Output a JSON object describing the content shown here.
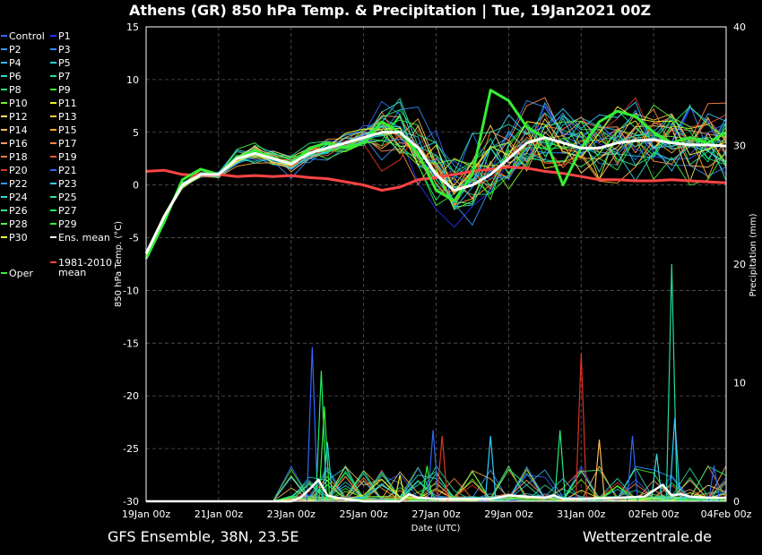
{
  "title": "Athens  (GR)  850 hPa Temp. & Precipitation | Tue, 19Jan2021 00Z",
  "footer_left": "GFS Ensemble, 38N, 23.5E",
  "footer_right": "Wetterzentrale.de",
  "chart_data": {
    "type": "line",
    "xlabel": "Date (UTC)",
    "ylabel_left": "850 hPa Temp. (°C)",
    "ylabel_right": "Precipitation (mm)",
    "xlim": [
      0,
      384
    ],
    "ylim_left": [
      -30,
      15
    ],
    "ylim_right": [
      0,
      40
    ],
    "grid": true,
    "legend_placement": "left",
    "x_ticks": [
      {
        "x": 0,
        "label": "19Jan 00z"
      },
      {
        "x": 48,
        "label": "21Jan 00z"
      },
      {
        "x": 96,
        "label": "23Jan 00z"
      },
      {
        "x": 144,
        "label": "25Jan 00z"
      },
      {
        "x": 192,
        "label": "27Jan 00z"
      },
      {
        "x": 240,
        "label": "29Jan 00z"
      },
      {
        "x": 288,
        "label": "31Jan 00z"
      },
      {
        "x": 336,
        "label": "02Feb 00z"
      },
      {
        "x": 384,
        "label": "04Feb 00z"
      }
    ],
    "y_ticks_left": [
      "15",
      "10",
      "5",
      "0",
      "-5",
      "-10",
      "-15",
      "-20",
      "-25",
      "-30"
    ],
    "y_ticks_right": [
      "40",
      "30",
      "20",
      "10",
      "0"
    ],
    "legend": [
      {
        "name": "Control",
        "color": "#3366ff"
      },
      {
        "name": "P1",
        "color": "#2233ff"
      },
      {
        "name": "P2",
        "color": "#3399ff"
      },
      {
        "name": "P3",
        "color": "#3388ee"
      },
      {
        "name": "P4",
        "color": "#33bbee"
      },
      {
        "name": "P5",
        "color": "#22ccdd"
      },
      {
        "name": "P6",
        "color": "#22ddcc"
      },
      {
        "name": "P7",
        "color": "#22dd99"
      },
      {
        "name": "P8",
        "color": "#22ee77"
      },
      {
        "name": "P9",
        "color": "#44ee33"
      },
      {
        "name": "P10",
        "color": "#77ee22"
      },
      {
        "name": "P11",
        "color": "#eeee22"
      },
      {
        "name": "P12",
        "color": "#ffdd66"
      },
      {
        "name": "P13",
        "color": "#ffcc44"
      },
      {
        "name": "P14",
        "color": "#ffbb55"
      },
      {
        "name": "P15",
        "color": "#ffaa22"
      },
      {
        "name": "P16",
        "color": "#ff9966"
      },
      {
        "name": "P17",
        "color": "#ff8844"
      },
      {
        "name": "P18",
        "color": "#ff7744"
      },
      {
        "name": "P19",
        "color": "#ee5533"
      },
      {
        "name": "P20",
        "color": "#dd3322"
      },
      {
        "name": "P21",
        "color": "#3366ee"
      },
      {
        "name": "P22",
        "color": "#3399ff"
      },
      {
        "name": "P23",
        "color": "#33ccff"
      },
      {
        "name": "P24",
        "color": "#33dddd"
      },
      {
        "name": "P25",
        "color": "#33ddaa"
      },
      {
        "name": "P26",
        "color": "#33ee88"
      },
      {
        "name": "P27",
        "color": "#22ee66"
      },
      {
        "name": "P28",
        "color": "#55ee44"
      },
      {
        "name": "P29",
        "color": "#33ee33"
      },
      {
        "name": "P30",
        "color": "#ffff33"
      },
      {
        "name": "Ens. mean",
        "color": "#ffffff"
      },
      {
        "name": "Oper",
        "color": "#33ee33"
      },
      {
        "name": "1981-2010 mean",
        "color": "#ff4444"
      }
    ],
    "series_ensemble_mean": {
      "name": "Ens. mean",
      "color": "#ffffff",
      "x": [
        0,
        12,
        24,
        36,
        48,
        60,
        72,
        84,
        96,
        108,
        120,
        132,
        144,
        156,
        168,
        180,
        192,
        204,
        216,
        228,
        240,
        252,
        264,
        276,
        288,
        300,
        312,
        324,
        336,
        348,
        360,
        372,
        384
      ],
      "y": [
        -6.5,
        -3,
        0,
        1,
        1,
        2.5,
        3,
        2.5,
        2,
        3,
        3.5,
        4,
        4.5,
        5,
        5,
        3.5,
        1,
        -0.5,
        0,
        1,
        2.5,
        4,
        4.5,
        4,
        3.5,
        3.5,
        4,
        4.2,
        4.3,
        4,
        3.8,
        3.8,
        3.7
      ]
    },
    "series_oper": {
      "name": "Oper",
      "color": "#33ee33",
      "x": [
        0,
        12,
        24,
        36,
        48,
        60,
        72,
        84,
        96,
        108,
        120,
        132,
        144,
        156,
        168,
        180,
        192,
        204,
        216,
        228,
        240,
        252,
        264,
        276,
        288,
        300,
        312,
        324,
        336,
        348,
        360,
        372,
        384
      ],
      "y": [
        -7,
        -3.5,
        0.5,
        1.5,
        1,
        2.5,
        3.3,
        2.5,
        2,
        3.5,
        4,
        3.5,
        4,
        6,
        5,
        3,
        -0.5,
        -1.5,
        1,
        9,
        8,
        5.5,
        4.5,
        0,
        3.5,
        6,
        7,
        6.5,
        5,
        4,
        4.5,
        4,
        5
      ]
    },
    "series_climatology": {
      "name": "1981-2010 mean",
      "color": "#ff4444",
      "x": [
        0,
        12,
        24,
        36,
        48,
        60,
        72,
        84,
        96,
        108,
        120,
        132,
        144,
        156,
        168,
        180,
        192,
        204,
        216,
        228,
        240,
        252,
        264,
        276,
        288,
        300,
        312,
        324,
        336,
        348,
        360,
        372,
        384
      ],
      "y": [
        1.3,
        1.4,
        1,
        0.9,
        1,
        0.8,
        0.9,
        0.8,
        0.9,
        0.7,
        0.6,
        0.3,
        0,
        -0.5,
        -0.2,
        0.5,
        0.7,
        1,
        1.3,
        1.5,
        1.7,
        1.6,
        1.3,
        1.1,
        0.8,
        0.5,
        0.5,
        0.4,
        0.4,
        0.5,
        0.4,
        0.3,
        0.2
      ]
    },
    "series_precip_ens_mean": {
      "name": "Ens. mean precipitation",
      "color": "#ffffff",
      "x": [
        0,
        96,
        102,
        108,
        114,
        120,
        126,
        132,
        144,
        168,
        174,
        180,
        192,
        228,
        240,
        264,
        270,
        276,
        288,
        312,
        330,
        336,
        342,
        348,
        354,
        360,
        372,
        384
      ],
      "y": [
        0,
        0,
        0.3,
        1,
        1.8,
        0.5,
        0.3,
        0.2,
        0,
        0,
        0.6,
        0.3,
        0.2,
        0.2,
        0.5,
        0.3,
        0.5,
        0.2,
        0.2,
        0.3,
        0.4,
        0.9,
        1.4,
        0.5,
        0.6,
        0.4,
        0.3,
        0.3
      ]
    },
    "precip_peaks": [
      {
        "x": 110,
        "y": 13,
        "color": "#3366ff"
      },
      {
        "x": 116,
        "y": 11,
        "color": "#22ee66"
      },
      {
        "x": 118,
        "y": 8,
        "color": "#33ee33"
      },
      {
        "x": 120,
        "y": 5,
        "color": "#22ddcc"
      },
      {
        "x": 168,
        "y": 2.2,
        "color": "#eeee22"
      },
      {
        "x": 186,
        "y": 3,
        "color": "#33ee33"
      },
      {
        "x": 190,
        "y": 6,
        "color": "#3366ee"
      },
      {
        "x": 196,
        "y": 5.5,
        "color": "#dd3322"
      },
      {
        "x": 228,
        "y": 5.5,
        "color": "#33ccff"
      },
      {
        "x": 274,
        "y": 6,
        "color": "#22ee77"
      },
      {
        "x": 288,
        "y": 12.5,
        "color": "#dd3322"
      },
      {
        "x": 300,
        "y": 5.2,
        "color": "#ffbb55"
      },
      {
        "x": 322,
        "y": 5.5,
        "color": "#3366ee"
      },
      {
        "x": 338,
        "y": 4,
        "color": "#33dddd"
      },
      {
        "x": 348,
        "y": 20,
        "color": "#22dd99"
      },
      {
        "x": 350,
        "y": 7,
        "color": "#33ccff"
      },
      {
        "x": 376,
        "y": 3,
        "color": "#3366ff"
      }
    ]
  }
}
